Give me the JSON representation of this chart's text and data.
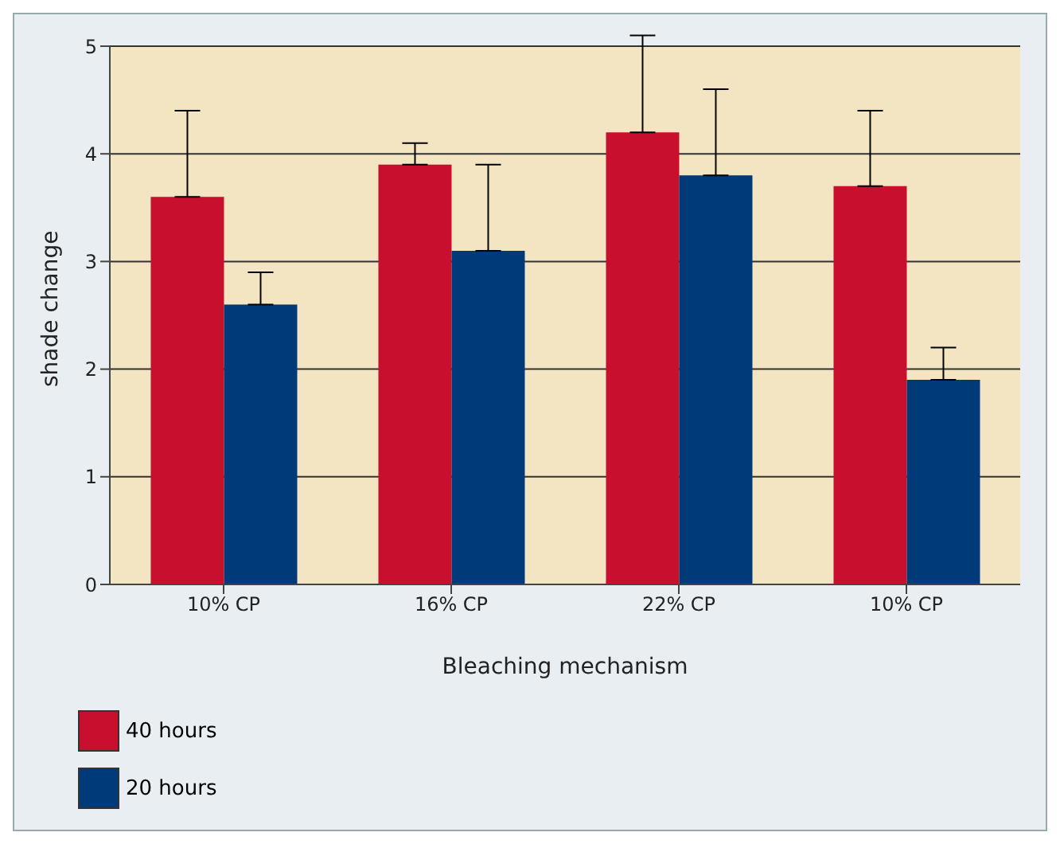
{
  "chart_data": {
    "type": "bar",
    "xlabel": "Bleaching mechanism",
    "ylabel": "shade change",
    "categories": [
      "10% CP",
      "16% CP",
      "22% CP",
      "10% CP"
    ],
    "series": [
      {
        "name": "40 hours",
        "color": "#c8102e",
        "values": [
          3.6,
          3.9,
          4.2,
          3.7
        ],
        "errors": [
          [
            3.6,
            4.4
          ],
          [
            3.9,
            4.1
          ],
          [
            4.2,
            5.1
          ],
          [
            3.7,
            4.4
          ]
        ]
      },
      {
        "name": "20 hours",
        "color": "#003a78",
        "values": [
          2.6,
          3.1,
          3.8,
          1.9
        ],
        "errors": [
          [
            2.6,
            2.9
          ],
          [
            3.1,
            3.9
          ],
          [
            3.8,
            4.6
          ],
          [
            1.9,
            2.2
          ]
        ]
      }
    ],
    "ylim": [
      0,
      5
    ],
    "yticks": [
      0,
      1,
      2,
      3,
      4,
      5
    ],
    "grid": "y",
    "legend": "bottom left"
  }
}
